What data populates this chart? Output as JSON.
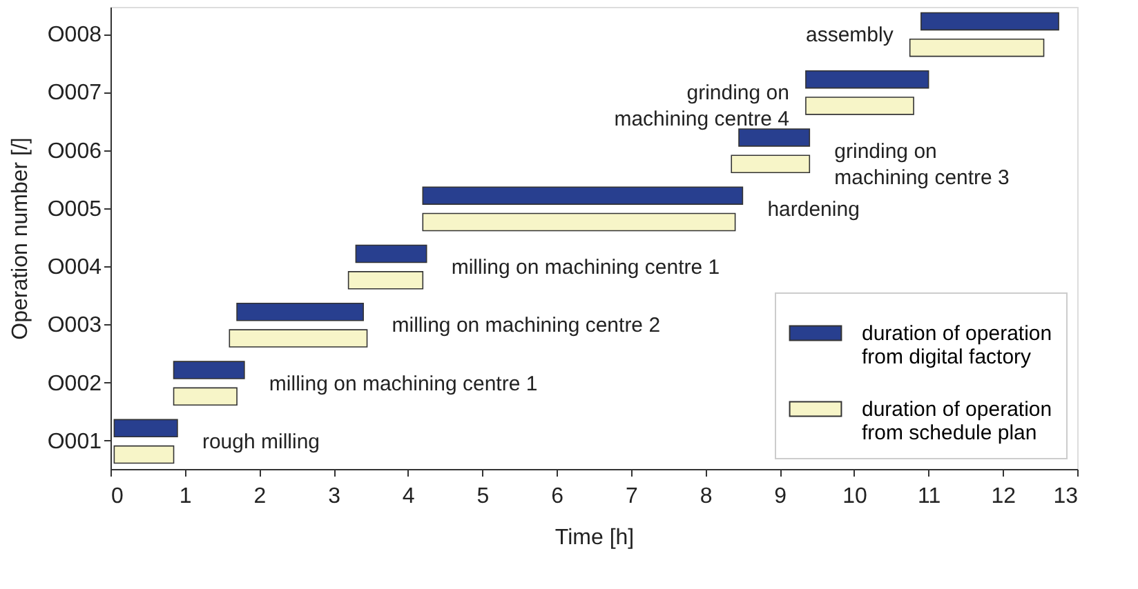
{
  "chart_data": {
    "type": "bar",
    "orientation": "horizontal",
    "xlabel": "Time [h]",
    "ylabel": "Operation number [/]",
    "categories": [
      "O008",
      "O007",
      "O006",
      "O005",
      "O004",
      "O003",
      "O002",
      "O001"
    ],
    "series": [
      {
        "name": "duration of operation\nfrom digital factory",
        "color": "#283f8f",
        "base": [
          10.9,
          9.35,
          8.45,
          4.2,
          3.3,
          1.7,
          0.85,
          0.05
        ],
        "values": [
          1.85,
          1.65,
          0.95,
          4.3,
          0.95,
          1.7,
          0.95,
          0.85
        ]
      },
      {
        "name": "duration of operation\nfrom schedule plan",
        "color": "#f7f5c8",
        "base": [
          10.75,
          9.35,
          8.35,
          4.2,
          3.2,
          1.6,
          0.85,
          0.05
        ],
        "values": [
          1.8,
          1.45,
          1.05,
          4.2,
          1.0,
          1.85,
          0.85,
          0.8
        ]
      }
    ],
    "xlim": [
      0,
      13
    ],
    "xticks": [
      0,
      1,
      2,
      3,
      4,
      5,
      6,
      7,
      8,
      9,
      10,
      11,
      12,
      13
    ],
    "grid": false,
    "legend": "bottom right",
    "annotations": [
      "rough milling",
      "milling on machining centre 1",
      "milling on machining centre 2",
      "milling on machining centre 1",
      "hardening",
      "grinding on\nmachining centre 3",
      "grinding on\nmachining centre 4",
      "assembly"
    ]
  }
}
